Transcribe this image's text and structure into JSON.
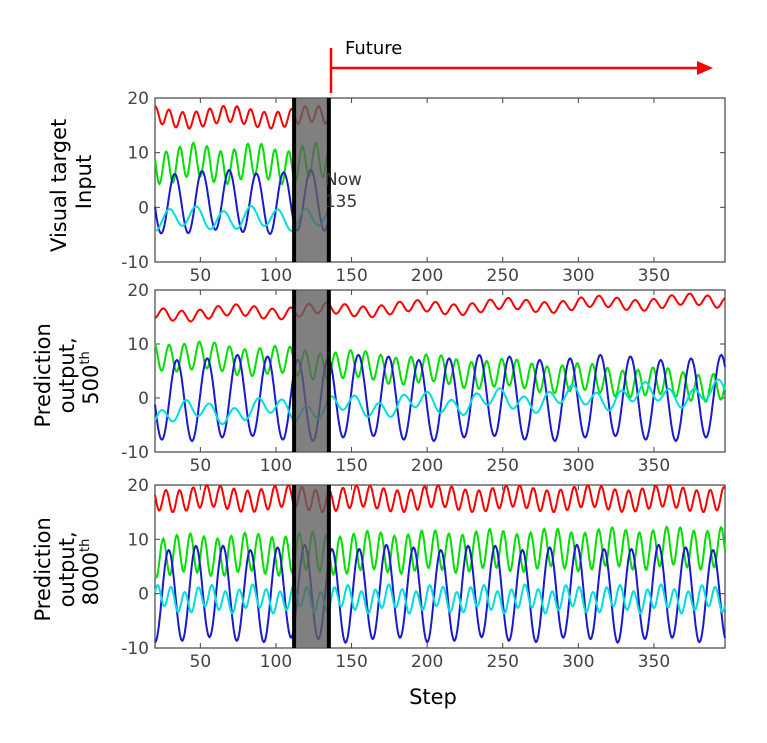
{
  "figure": {
    "future_label": "Future",
    "x_axis_label": "Step",
    "arrow_color": "#ff0000"
  },
  "chart_data": [
    {
      "type": "line",
      "ylabel_lines": [
        "Visual target",
        "Input"
      ],
      "ylabel_sup": "",
      "xlim": [
        20,
        397
      ],
      "ylim": [
        -10,
        20
      ],
      "x_ticks": [
        50,
        100,
        150,
        200,
        250,
        300,
        350
      ],
      "y_ticks": [
        -10,
        0,
        10,
        20
      ],
      "now_window": [
        112,
        135
      ],
      "now_label": [
        "Now",
        "135"
      ],
      "series": [
        {
          "name": "red",
          "color": "#ff0000",
          "x_end": 135,
          "base": 16.5,
          "amp": 1.5,
          "period": 9,
          "mod_amp": 0.6,
          "mod_period": 55
        },
        {
          "name": "green",
          "color": "#00e000",
          "x_end": 135,
          "base": 8,
          "amp": 3,
          "period": 9,
          "mod_amp": 0.8,
          "mod_period": 40
        },
        {
          "name": "blue",
          "color": "#1a1acc",
          "x_end": 135,
          "base": 1,
          "amp": 5.5,
          "period": 18,
          "mod_amp": 0.4,
          "mod_period": 60
        },
        {
          "name": "cyan",
          "color": "#00dddd",
          "x_end": 135,
          "base": -2,
          "amp": 1.8,
          "period": 18,
          "mod_amp": 0.5,
          "mod_period": 45
        }
      ]
    },
    {
      "type": "line",
      "ylabel_lines": [
        "Prediction",
        "output,",
        "500"
      ],
      "ylabel_sup": "th",
      "xlim": [
        20,
        397
      ],
      "ylim": [
        -10,
        20
      ],
      "x_ticks": [
        50,
        100,
        150,
        200,
        250,
        300,
        350
      ],
      "y_ticks": [
        -10,
        0,
        10,
        20
      ],
      "now_window": [
        112,
        135
      ],
      "now_label": [],
      "series": [
        {
          "name": "red",
          "color": "#ff0000",
          "x_end": 397,
          "base": 15.5,
          "base_end": 18,
          "amp": 1,
          "period": 12,
          "mod_amp": 0.5,
          "mod_period": 60
        },
        {
          "name": "green",
          "color": "#00e000",
          "x_end": 397,
          "base": 8,
          "base_end": 2,
          "amp": 2.5,
          "period": 10,
          "mod_amp": 0.5,
          "mod_period": 50
        },
        {
          "name": "blue",
          "color": "#1a1acc",
          "x_end": 397,
          "base": 0,
          "amp": 7.5,
          "period": 20,
          "mod_amp": 0.5,
          "mod_period": 80
        },
        {
          "name": "cyan",
          "color": "#00dddd",
          "x_end": 397,
          "base": -3,
          "base_end": 1,
          "amp": 1.5,
          "period": 16,
          "mod_amp": 1,
          "mod_period": 50
        }
      ]
    },
    {
      "type": "line",
      "ylabel_lines": [
        "Prediction",
        "output,",
        "8000"
      ],
      "ylabel_sup": "th",
      "xlim": [
        20,
        397
      ],
      "ylim": [
        -10,
        20
      ],
      "x_ticks": [
        50,
        100,
        150,
        200,
        250,
        300,
        350
      ],
      "y_ticks": [
        -10,
        0,
        10,
        20
      ],
      "now_window": [
        112,
        135
      ],
      "now_label": [],
      "series": [
        {
          "name": "red",
          "color": "#ff0000",
          "x_end": 397,
          "base": 17.5,
          "amp": 2,
          "period": 9,
          "mod_amp": 0.5,
          "mod_period": 50
        },
        {
          "name": "green",
          "color": "#00e000",
          "x_end": 397,
          "base": 7,
          "base_end": 8.5,
          "amp": 3.5,
          "period": 9,
          "mod_amp": 0.5,
          "mod_period": 40
        },
        {
          "name": "blue",
          "color": "#1a1acc",
          "x_end": 397,
          "base": 0,
          "amp": 8.5,
          "period": 18,
          "mod_amp": 0.5,
          "mod_period": 60
        },
        {
          "name": "cyan",
          "color": "#00dddd",
          "x_end": 397,
          "base": -1,
          "amp": 2,
          "period": 9,
          "mod_amp": 0.7,
          "mod_period": 30
        }
      ]
    }
  ]
}
